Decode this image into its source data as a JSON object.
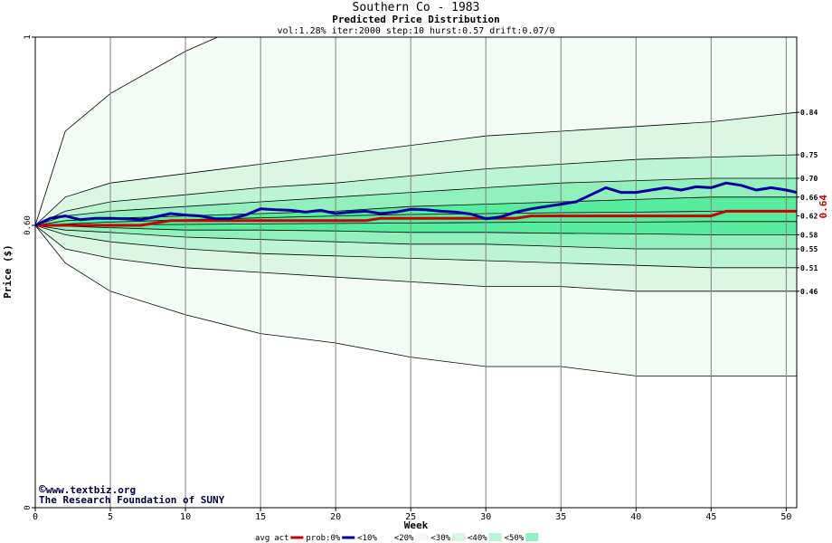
{
  "colors": {
    "avg": "#0000a0",
    "act": "#cc0000",
    "band_10": "#f2fcf4",
    "band_20": "#dbf7e4",
    "band_30": "#bef4d6",
    "band_40": "#92f0bc",
    "band_50": "#57ec9e",
    "grid": "#808080",
    "contour": "#000000",
    "highlight": "#cc0000"
  },
  "credits": {
    "line1": "www.textbiz.org",
    "line2": "The Research Foundation of SUNY",
    "copyright_symbol": "©"
  },
  "chart_data": {
    "type": "area",
    "title": "Southern Co - 1983",
    "subtitle": "Predicted Price Distribution",
    "params": "vol:1.28% iter:2000 step:10 hurst:0.57 drift:0.07/0",
    "xlabel": "Week",
    "ylabel": "Price ($)",
    "xlim": [
      0,
      50.7
    ],
    "ylim": [
      0,
      1
    ],
    "x_ticks": [
      0,
      5,
      10,
      15,
      20,
      25,
      30,
      35,
      40,
      45,
      50
    ],
    "y_ticks": [
      0,
      0.6,
      1
    ],
    "y_tick_labels": [
      "0",
      "0.60",
      "1"
    ],
    "highlight_value": 0.64,
    "highlight_label": "0.64",
    "right_labels": [
      {
        "value": 0.84,
        "label": "0.84"
      },
      {
        "value": 0.75,
        "label": "0.75"
      },
      {
        "value": 0.7,
        "label": "0.70"
      },
      {
        "value": 0.66,
        "label": "0.66"
      },
      {
        "value": 0.62,
        "label": "0.62"
      },
      {
        "value": 0.58,
        "label": "0.58"
      },
      {
        "value": 0.55,
        "label": "0.55"
      },
      {
        "value": 0.51,
        "label": "0.51"
      },
      {
        "value": 0.46,
        "label": "0.46"
      }
    ],
    "legend": [
      {
        "label": "avg",
        "kind": "none"
      },
      {
        "label": "act",
        "kind": "line",
        "color": "#cc0000"
      },
      {
        "label": "prob:0%",
        "kind": "line",
        "color": "#0000a0"
      },
      {
        "label": "<10%",
        "kind": "swatch",
        "color": "#ffffff"
      },
      {
        "label": "<20%",
        "kind": "swatch",
        "color": "#f2fcf4"
      },
      {
        "label": "<30%",
        "kind": "swatch",
        "color": "#dbf7e4"
      },
      {
        "label": "<40%",
        "kind": "swatch",
        "color": "#bef4d6"
      },
      {
        "label": "<50%",
        "kind": "swatch",
        "color": "#92f0bc"
      }
    ],
    "bands": [
      {
        "name": "<10%",
        "x": [
          0,
          2,
          5,
          10,
          15,
          20,
          25,
          30,
          35,
          40,
          45,
          50.7
        ],
        "upper": [
          0.6,
          0.8,
          0.88,
          0.97,
          1.04,
          1.08,
          1.1,
          1.12,
          1.14,
          1.15,
          1.16,
          1.17
        ],
        "lower": [
          0.6,
          0.52,
          0.46,
          0.41,
          0.37,
          0.35,
          0.32,
          0.3,
          0.3,
          0.28,
          0.28,
          0.28
        ]
      },
      {
        "name": "<20%",
        "x": [
          0,
          2,
          5,
          10,
          15,
          20,
          25,
          30,
          35,
          40,
          45,
          50.7
        ],
        "upper": [
          0.6,
          0.66,
          0.69,
          0.71,
          0.73,
          0.75,
          0.77,
          0.79,
          0.8,
          0.81,
          0.82,
          0.84
        ],
        "lower": [
          0.6,
          0.55,
          0.53,
          0.51,
          0.5,
          0.49,
          0.48,
          0.47,
          0.47,
          0.46,
          0.46,
          0.46
        ]
      },
      {
        "name": "<30%",
        "x": [
          0,
          2,
          5,
          10,
          15,
          20,
          25,
          30,
          35,
          40,
          45,
          50.7
        ],
        "upper": [
          0.6,
          0.63,
          0.65,
          0.665,
          0.68,
          0.69,
          0.705,
          0.72,
          0.73,
          0.74,
          0.745,
          0.75
        ],
        "lower": [
          0.6,
          0.58,
          0.565,
          0.55,
          0.54,
          0.535,
          0.53,
          0.525,
          0.52,
          0.515,
          0.51,
          0.51
        ]
      },
      {
        "name": "<40%",
        "x": [
          0,
          2,
          5,
          10,
          15,
          20,
          25,
          30,
          35,
          40,
          45,
          50.7
        ],
        "upper": [
          0.6,
          0.62,
          0.63,
          0.64,
          0.65,
          0.66,
          0.67,
          0.68,
          0.69,
          0.695,
          0.7,
          0.7
        ],
        "lower": [
          0.6,
          0.59,
          0.585,
          0.575,
          0.57,
          0.565,
          0.56,
          0.56,
          0.555,
          0.55,
          0.55,
          0.55
        ]
      },
      {
        "name": "<50%",
        "x": [
          0,
          2,
          5,
          10,
          15,
          20,
          25,
          30,
          35,
          40,
          45,
          50.7
        ],
        "upper": [
          0.6,
          0.61,
          0.615,
          0.62,
          0.625,
          0.63,
          0.64,
          0.645,
          0.65,
          0.655,
          0.66,
          0.66
        ],
        "lower": [
          0.6,
          0.598,
          0.595,
          0.59,
          0.59,
          0.588,
          0.585,
          0.585,
          0.583,
          0.582,
          0.58,
          0.58
        ]
      }
    ],
    "inner_contours": [
      {
        "x": [
          0,
          5,
          10,
          15,
          20,
          25,
          30,
          35,
          40,
          45,
          50.7
        ],
        "y": [
          0.6,
          0.607,
          0.612,
          0.616,
          0.62,
          0.623,
          0.625,
          0.627,
          0.628,
          0.63,
          0.632
        ]
      },
      {
        "x": [
          0,
          5,
          10,
          15,
          20,
          25,
          30,
          35,
          40,
          45,
          50.7
        ],
        "y": [
          0.6,
          0.601,
          0.602,
          0.603,
          0.604,
          0.605,
          0.606,
          0.607,
          0.607,
          0.608,
          0.608
        ]
      }
    ],
    "series": [
      {
        "name": "act",
        "x": [
          0,
          1,
          2,
          3,
          4,
          5,
          6,
          7,
          8,
          9,
          10,
          11,
          12,
          13,
          14,
          15,
          16,
          17,
          18,
          19,
          20,
          21,
          22,
          23,
          24,
          25,
          26,
          27,
          28,
          29,
          30,
          31,
          32,
          33,
          34,
          35,
          36,
          37,
          38,
          39,
          40,
          41,
          42,
          43,
          44,
          45,
          46,
          47,
          48,
          49,
          50,
          50.7
        ],
        "y": [
          0.6,
          0.6,
          0.6,
          0.6,
          0.6,
          0.6,
          0.6,
          0.6,
          0.605,
          0.61,
          0.61,
          0.61,
          0.61,
          0.61,
          0.61,
          0.61,
          0.61,
          0.61,
          0.61,
          0.61,
          0.61,
          0.61,
          0.61,
          0.615,
          0.615,
          0.615,
          0.615,
          0.615,
          0.615,
          0.615,
          0.615,
          0.615,
          0.615,
          0.62,
          0.62,
          0.62,
          0.62,
          0.62,
          0.62,
          0.62,
          0.62,
          0.62,
          0.62,
          0.62,
          0.62,
          0.62,
          0.63,
          0.63,
          0.63,
          0.63,
          0.63,
          0.63
        ]
      },
      {
        "name": "avg",
        "x": [
          0,
          1,
          2,
          3,
          4,
          5,
          6,
          7,
          8,
          9,
          10,
          11,
          12,
          13,
          14,
          15,
          16,
          17,
          18,
          19,
          20,
          21,
          22,
          23,
          24,
          25,
          26,
          27,
          28,
          29,
          30,
          31,
          32,
          33,
          34,
          35,
          36,
          37,
          38,
          39,
          40,
          41,
          42,
          43,
          44,
          45,
          46,
          47,
          48,
          49,
          50,
          50.7
        ],
        "y": [
          0.6,
          0.615,
          0.62,
          0.612,
          0.615,
          0.615,
          0.614,
          0.612,
          0.618,
          0.625,
          0.622,
          0.62,
          0.614,
          0.614,
          0.622,
          0.635,
          0.633,
          0.632,
          0.628,
          0.632,
          0.625,
          0.628,
          0.63,
          0.625,
          0.628,
          0.634,
          0.633,
          0.63,
          0.628,
          0.624,
          0.614,
          0.618,
          0.628,
          0.635,
          0.64,
          0.645,
          0.65,
          0.665,
          0.68,
          0.67,
          0.67,
          0.675,
          0.68,
          0.675,
          0.682,
          0.68,
          0.69,
          0.685,
          0.675,
          0.68,
          0.675,
          0.67
        ]
      }
    ]
  }
}
